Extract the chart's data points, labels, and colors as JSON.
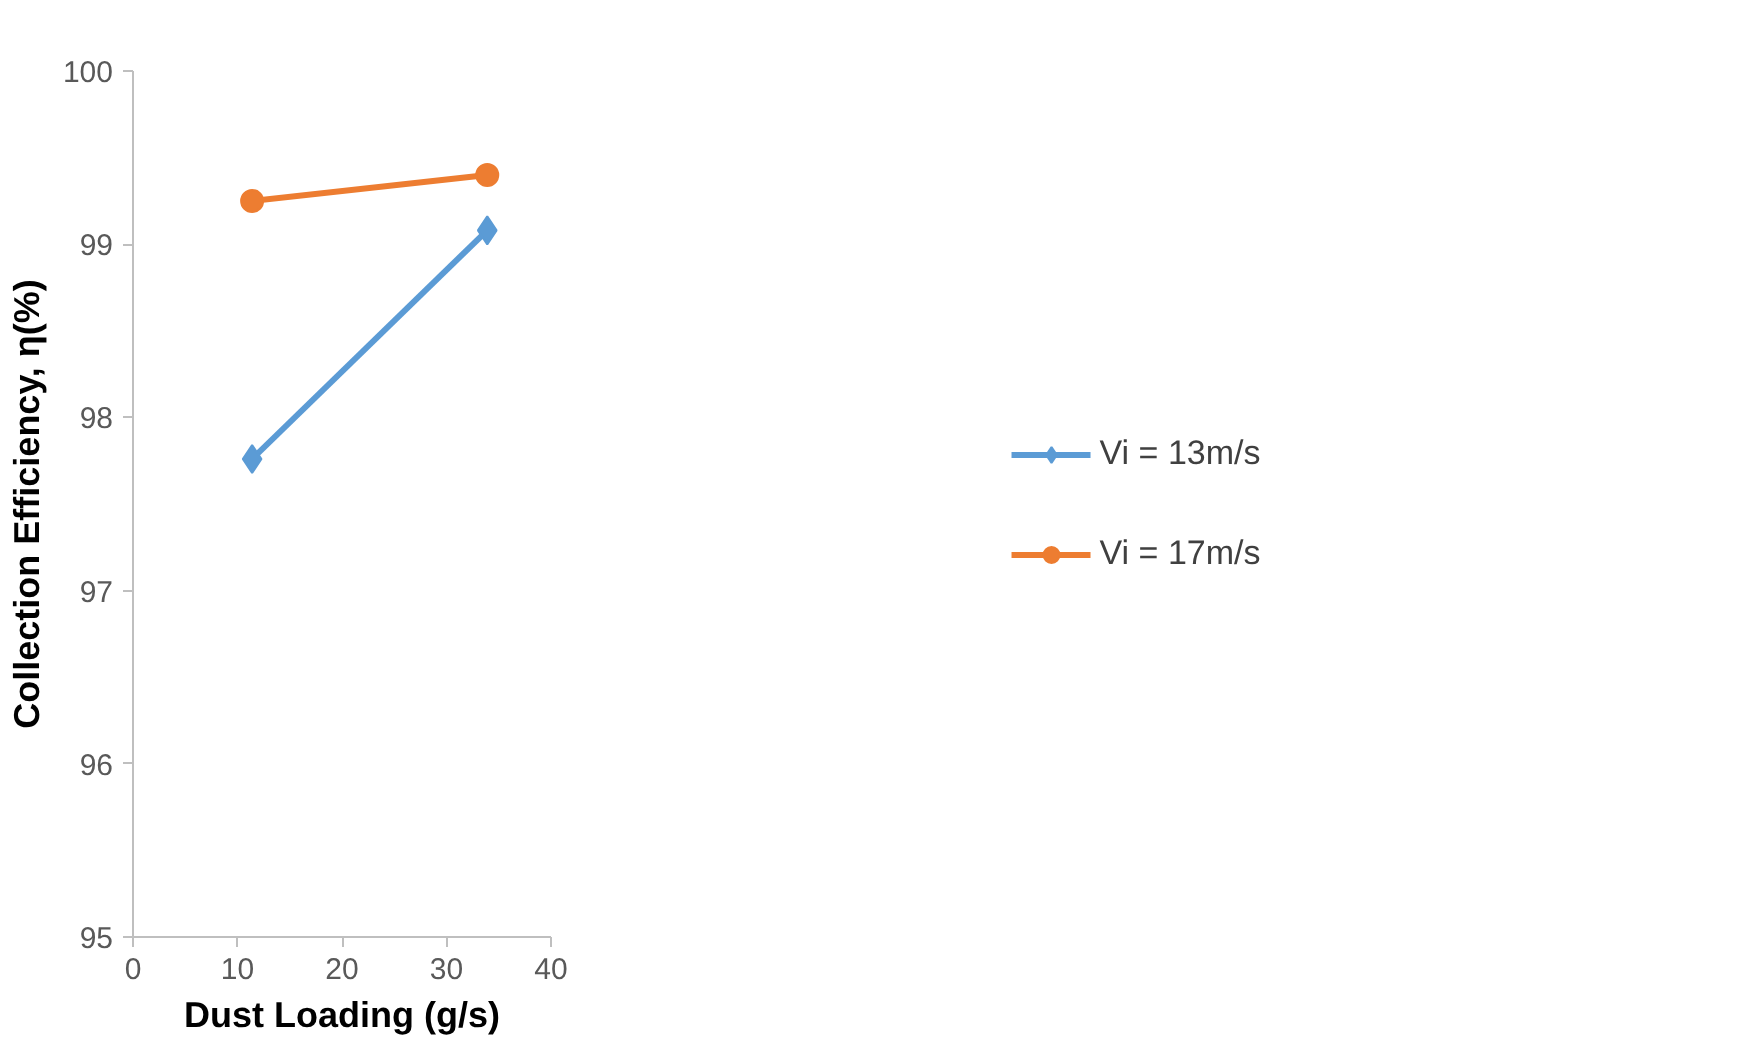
{
  "chart_data": {
    "type": "line",
    "xlabel": "Dust Loading (g/s)",
    "ylabel": "Collection Efficiency, η(%)",
    "x": [
      11.4,
      33.9
    ],
    "series": [
      {
        "name": "Vi = 13m/s",
        "color": "#5b9bd5",
        "values": [
          97.76,
          99.08
        ],
        "marker": "diamond"
      },
      {
        "name": "Vi = 17m/s",
        "color": "#ed7d31",
        "values": [
          99.25,
          99.4
        ],
        "marker": "circle"
      }
    ],
    "xlim": [
      0,
      40
    ],
    "xticks": [
      0,
      10,
      20,
      30,
      40
    ],
    "ylim": [
      95,
      100
    ],
    "yticks": [
      95,
      96,
      97,
      98,
      99,
      100
    ],
    "grid": false,
    "legend": "right"
  }
}
